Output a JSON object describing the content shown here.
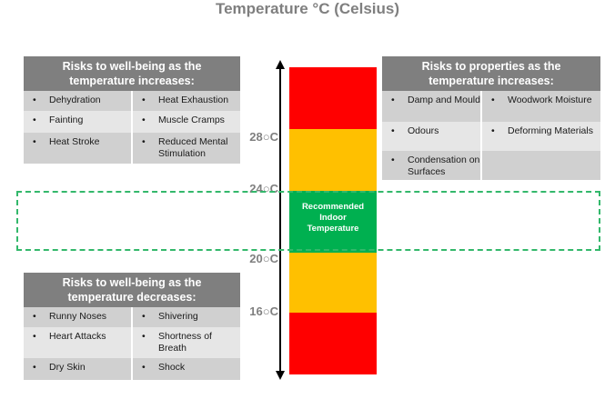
{
  "title": "Temperature °C (Celsius)",
  "scale": {
    "labels": [
      "28○C",
      "24○C",
      "20○C",
      "16○C"
    ],
    "recommended": [
      "Recommended",
      "Indoor",
      "Temperature"
    ],
    "colors": {
      "hot_cold": "#ff0000",
      "warning": "#ffc000",
      "recommended": "#00b050",
      "dashed": "#33b86b"
    }
  },
  "wellbeing_increase": {
    "heading": [
      "Risks to well-being as the",
      "temperature increases:"
    ],
    "items": [
      [
        "Dehydration",
        "Heat Exhaustion"
      ],
      [
        "Fainting",
        "Muscle Cramps"
      ],
      [
        "Heat Stroke",
        "Reduced Mental Stimulation"
      ]
    ]
  },
  "properties_increase": {
    "heading": [
      "Risks to properties as the",
      "temperature increases:"
    ],
    "items": [
      [
        "Damp and Mould",
        "Woodwork Moisture"
      ],
      [
        "Odours",
        "Deforming Materials"
      ],
      [
        "Condensation on Surfaces",
        ""
      ]
    ]
  },
  "wellbeing_decrease": {
    "heading": [
      "Risks to well-being as the",
      "temperature decreases:"
    ],
    "items": [
      [
        "Runny Noses",
        "Shivering"
      ],
      [
        "Heart Attacks",
        "Shortness of Breath"
      ],
      [
        "Dry Skin",
        "Shock"
      ]
    ]
  }
}
